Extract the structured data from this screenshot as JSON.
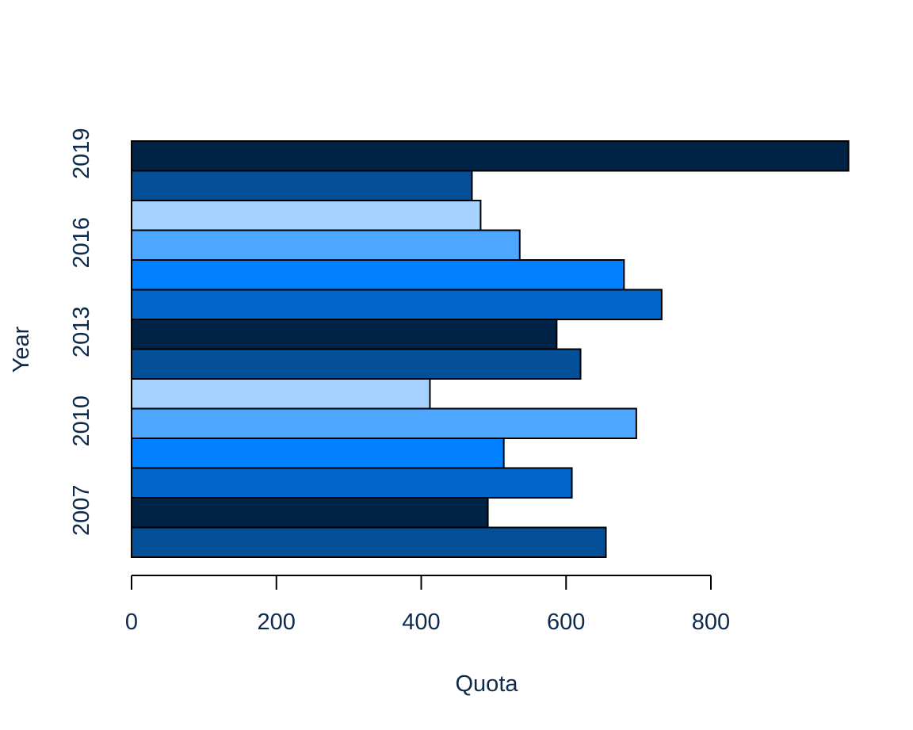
{
  "chart_data": {
    "type": "bar",
    "orientation": "horizontal",
    "xlabel": "Quota",
    "ylabel": "Year",
    "xlim": [
      0,
      1000
    ],
    "x_ticks": [
      "0",
      "200",
      "400",
      "600",
      "800"
    ],
    "x_tick_values": [
      0,
      200,
      400,
      600,
      800
    ],
    "categories": [
      "2006",
      "2007",
      "2008",
      "2009",
      "2010",
      "2011",
      "2012",
      "2013",
      "2014",
      "2015",
      "2016",
      "2017",
      "2018",
      "2019"
    ],
    "y_tick_labels": [
      {
        "label": "2007",
        "category": "2007"
      },
      {
        "label": "2010",
        "category": "2010"
      },
      {
        "label": "2013",
        "category": "2013"
      },
      {
        "label": "2016",
        "category": "2016"
      },
      {
        "label": "2019",
        "category": "2019"
      }
    ],
    "values": [
      655,
      492,
      608,
      514,
      697,
      412,
      620,
      587,
      732,
      680,
      536,
      482,
      470,
      990
    ],
    "colors": [
      "#034F98",
      "#002346",
      "#0166CC",
      "#0180FF",
      "#4DA6FF",
      "#A5D2FF",
      "#034F98",
      "#002346",
      "#0166CC",
      "#0180FF",
      "#4DA6FF",
      "#A5D2FF",
      "#034F98",
      "#002346"
    ],
    "grid": false,
    "legend": "none"
  }
}
